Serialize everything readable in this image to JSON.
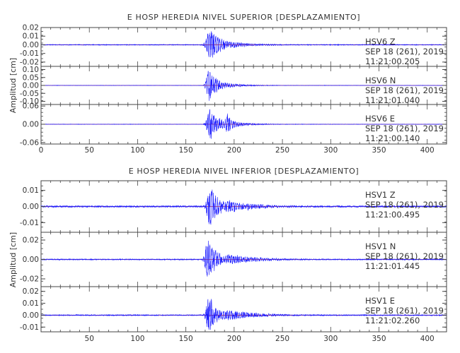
{
  "chart_data": [
    {
      "type": "line",
      "title": "E HOSP HEREDIA NIVEL SUPERIOR [DESPLAZAMIENTO]",
      "ylabel": "Amplitud [cm]",
      "xlim": [
        0,
        420
      ],
      "x_ticks": [
        "0",
        "50",
        "100",
        "150",
        "200",
        "250",
        "300",
        "350",
        "400"
      ],
      "series_color": "#1a1aff",
      "zero_line_color": "#e03030",
      "panels": [
        {
          "name": "HSV6 Z",
          "station": "HSV6",
          "component": "Z",
          "date": "SEP 18 (261), 2019",
          "time": "11:21:00.205",
          "ylim": [
            -0.025,
            0.02
          ],
          "y_ticks": [
            "0.02",
            "0.01",
            "0.00",
            "-0.01",
            "-0.02"
          ],
          "noise": 0.0004,
          "peak": 0.022,
          "packets": [
            [
              175,
              12,
              0.9
            ],
            [
              190,
              22,
              0.25
            ]
          ]
        },
        {
          "name": "HSV6 N",
          "station": "HSV6",
          "component": "N",
          "date": "SEP 18 (261), 2019",
          "time": "11:21:01.040",
          "ylim": [
            -0.12,
            0.12
          ],
          "y_ticks": [
            "0.10",
            "0.05",
            "0.00",
            "-0.05",
            "-0.10"
          ],
          "noise": 0.001,
          "peak": 0.11,
          "packets": [
            [
              174,
              9,
              1.0
            ],
            [
              188,
              18,
              0.2
            ]
          ]
        },
        {
          "name": "HSV6 E",
          "station": "HSV6",
          "component": "E",
          "date": "SEP 18 (261), 2019",
          "time": "11:21:00.140",
          "ylim": [
            -0.065,
            0.065
          ],
          "y_ticks": [
            "0.06",
            "0.00",
            "-0.06"
          ],
          "noise": 0.0006,
          "peak": 0.06,
          "packets": [
            [
              175,
              10,
              0.95
            ],
            [
              193,
              8,
              0.6
            ],
            [
              205,
              18,
              0.12
            ]
          ]
        }
      ]
    },
    {
      "type": "line",
      "title": "E HOSP HEREDIA NIVEL INFERIOR [DESPLAZAMIENTO]",
      "ylabel": "Amplitud [cm]",
      "xlim": [
        0,
        420
      ],
      "x_ticks": [
        "50",
        "100",
        "150",
        "200",
        "250",
        "300",
        "350",
        "400"
      ],
      "series_color": "#1a1aff",
      "zero_line_color": "#e03030",
      "panels": [
        {
          "name": "HSV1 Z",
          "station": "HSV1",
          "component": "Z",
          "date": "SEP 18 (261), 2019",
          "time": "11:21:00.495",
          "ylim": [
            -0.016,
            0.016
          ],
          "y_ticks": [
            "0.01",
            "0.00",
            "-0.01"
          ],
          "noise": 0.0005,
          "peak": 0.015,
          "packets": [
            [
              175,
              10,
              0.9
            ],
            [
              195,
              28,
              0.25
            ]
          ]
        },
        {
          "name": "HSV1 N",
          "station": "HSV1",
          "component": "N",
          "date": "SEP 18 (261), 2019",
          "time": "11:21:01.445",
          "ylim": [
            -0.028,
            0.028
          ],
          "y_ticks": [
            "0.02",
            "0.00",
            "-0.02"
          ],
          "noise": 0.0005,
          "peak": 0.027,
          "packets": [
            [
              173,
              9,
              1.0
            ],
            [
              195,
              30,
              0.2
            ]
          ]
        },
        {
          "name": "HSV1 E",
          "station": "HSV1",
          "component": "E",
          "date": "SEP 18 (261), 2019",
          "time": "11:21:02.260",
          "ylim": [
            -0.014,
            0.024
          ],
          "y_ticks": [
            "0.02",
            "0.01",
            "0.00",
            "-0.01"
          ],
          "noise": 0.0004,
          "peak": 0.018,
          "packets": [
            [
              174,
              9,
              1.0
            ],
            [
              195,
              30,
              0.25
            ]
          ]
        }
      ]
    }
  ]
}
